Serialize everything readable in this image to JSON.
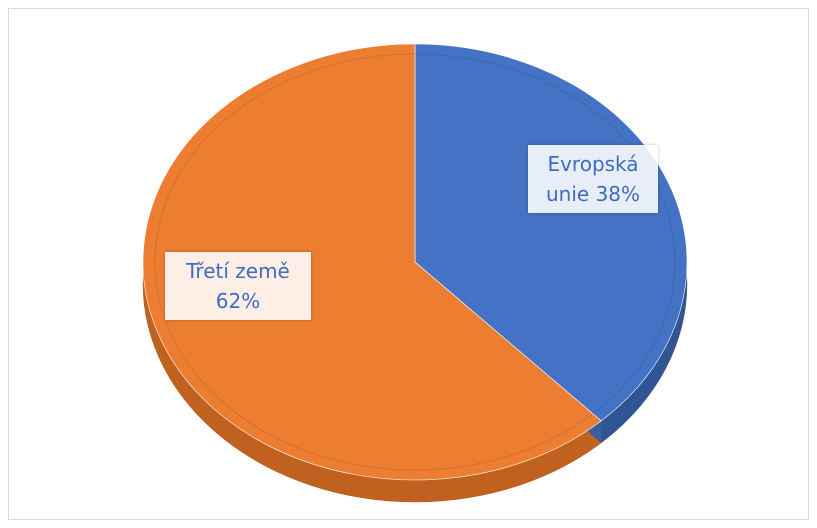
{
  "chart_data": {
    "type": "pie",
    "categories": [
      "Evropská unie",
      "Třetí země"
    ],
    "values": [
      38,
      62
    ],
    "value_labels": [
      "38%",
      "62%"
    ],
    "colors": [
      "#4472c4",
      "#ed7d31"
    ]
  }
}
